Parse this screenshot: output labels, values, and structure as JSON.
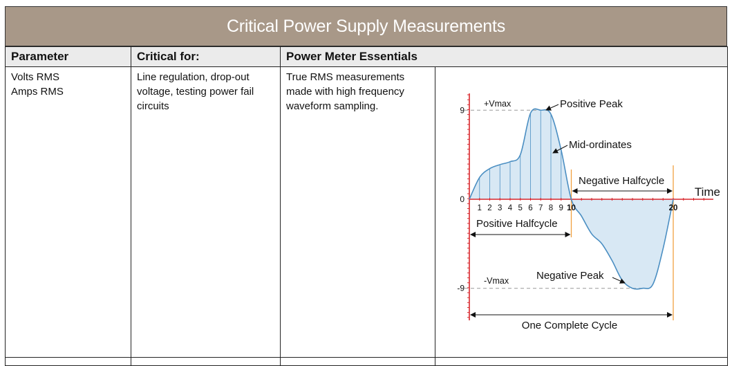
{
  "page": {
    "title": "Critical Power Supply Measurements"
  },
  "table": {
    "headers": [
      "Parameter",
      "Critical for:",
      "Power Meter Essentials"
    ],
    "row1": {
      "parameter": [
        "Volts RMS",
        "Amps RMS"
      ],
      "critical_for": [
        "Line regulation, drop-out",
        "voltage, testing power fail",
        "circuits"
      ],
      "essentials": [
        "True RMS measurements",
        "made with high frequency",
        "waveform sampling."
      ]
    }
  },
  "chart_data": {
    "type": "area",
    "x": [
      0,
      1,
      2,
      3,
      4,
      5,
      6,
      7,
      8,
      9,
      10,
      11,
      12,
      13,
      14,
      15,
      16,
      17,
      18,
      19,
      20
    ],
    "y": [
      0,
      2.2,
      3.1,
      3.5,
      3.8,
      4.5,
      8.7,
      9,
      8.6,
      5,
      0,
      -1.7,
      -3.5,
      -4.5,
      -6.2,
      -8.2,
      -9,
      -9,
      -8.6,
      -5,
      0
    ],
    "yticks": [
      "9",
      "0",
      "-9"
    ],
    "xticks": [
      "1",
      "2",
      "3",
      "4",
      "5",
      "6",
      "7",
      "8",
      "9",
      "10",
      "20"
    ],
    "xlabel": "Time",
    "annotations": {
      "vmax": "+Vmax",
      "vmin": "-Vmax",
      "positive_peak": "Positive Peak",
      "mid_ordinates": "Mid-ordinates",
      "negative_halfcycle": "Negative Halfcycle",
      "positive_halfcycle": "Positive Halfcycle",
      "negative_peak": "Negative Peak",
      "one_complete_cycle": "One Complete Cycle"
    },
    "colors": {
      "curve": "#4a8ec2",
      "fill": "#d8e8f4",
      "axis": "#d8262c",
      "cycle_marker": "#f0a040"
    }
  }
}
